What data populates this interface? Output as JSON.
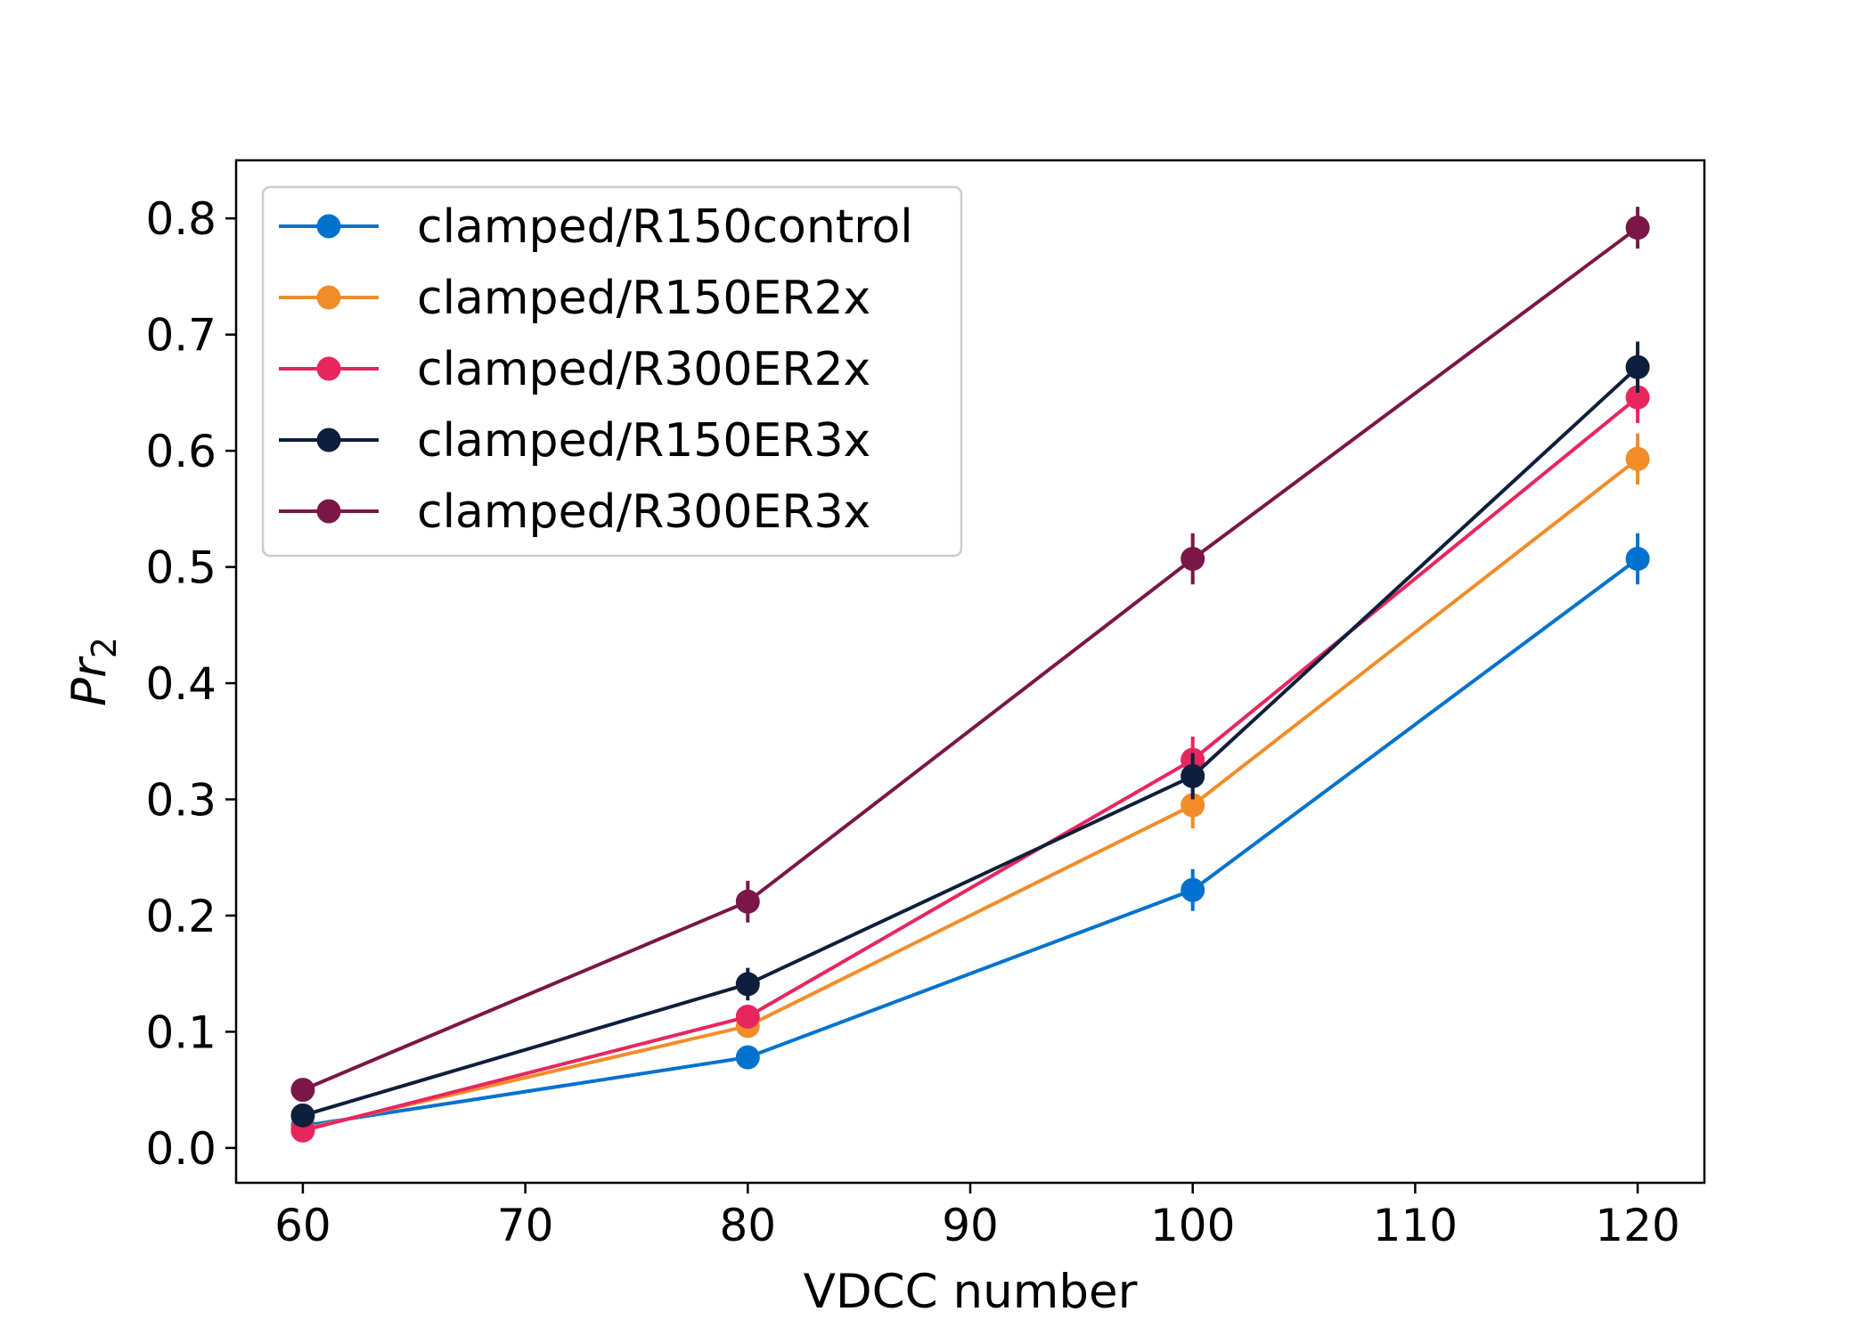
{
  "chart_data": {
    "type": "line",
    "xlabel": "VDCC number",
    "ylabel": "Pr",
    "ylabel_subscript": "2",
    "xlim": [
      57,
      123
    ],
    "ylim": [
      -0.03,
      0.85
    ],
    "xticks": [
      60,
      70,
      80,
      90,
      100,
      110,
      120
    ],
    "yticks": [
      0.0,
      0.1,
      0.2,
      0.3,
      0.4,
      0.5,
      0.6,
      0.7,
      0.8
    ],
    "x": [
      60,
      80,
      100,
      120
    ],
    "legend_position": "upper left",
    "series": [
      {
        "name": "clamped/R150control",
        "color": "#0072CE",
        "values": [
          0.019,
          0.078,
          0.222,
          0.507
        ],
        "errors": [
          0.004,
          0.007,
          0.018,
          0.022
        ]
      },
      {
        "name": "clamped/R150ER2x",
        "color": "#F28C28",
        "values": [
          0.016,
          0.105,
          0.295,
          0.593
        ],
        "errors": [
          0.004,
          0.009,
          0.02,
          0.022
        ]
      },
      {
        "name": "clamped/R300ER2x",
        "color": "#E8265E",
        "values": [
          0.015,
          0.113,
          0.334,
          0.646
        ],
        "errors": [
          0.004,
          0.009,
          0.02,
          0.022
        ]
      },
      {
        "name": "clamped/R150ER3x",
        "color": "#0D1F3C",
        "values": [
          0.028,
          0.141,
          0.32,
          0.672
        ],
        "errors": [
          0.005,
          0.014,
          0.02,
          0.022
        ]
      },
      {
        "name": "clamped/R300ER3x",
        "color": "#7A1747",
        "values": [
          0.05,
          0.212,
          0.507,
          0.792
        ],
        "errors": [
          0.005,
          0.018,
          0.022,
          0.018
        ]
      }
    ]
  }
}
